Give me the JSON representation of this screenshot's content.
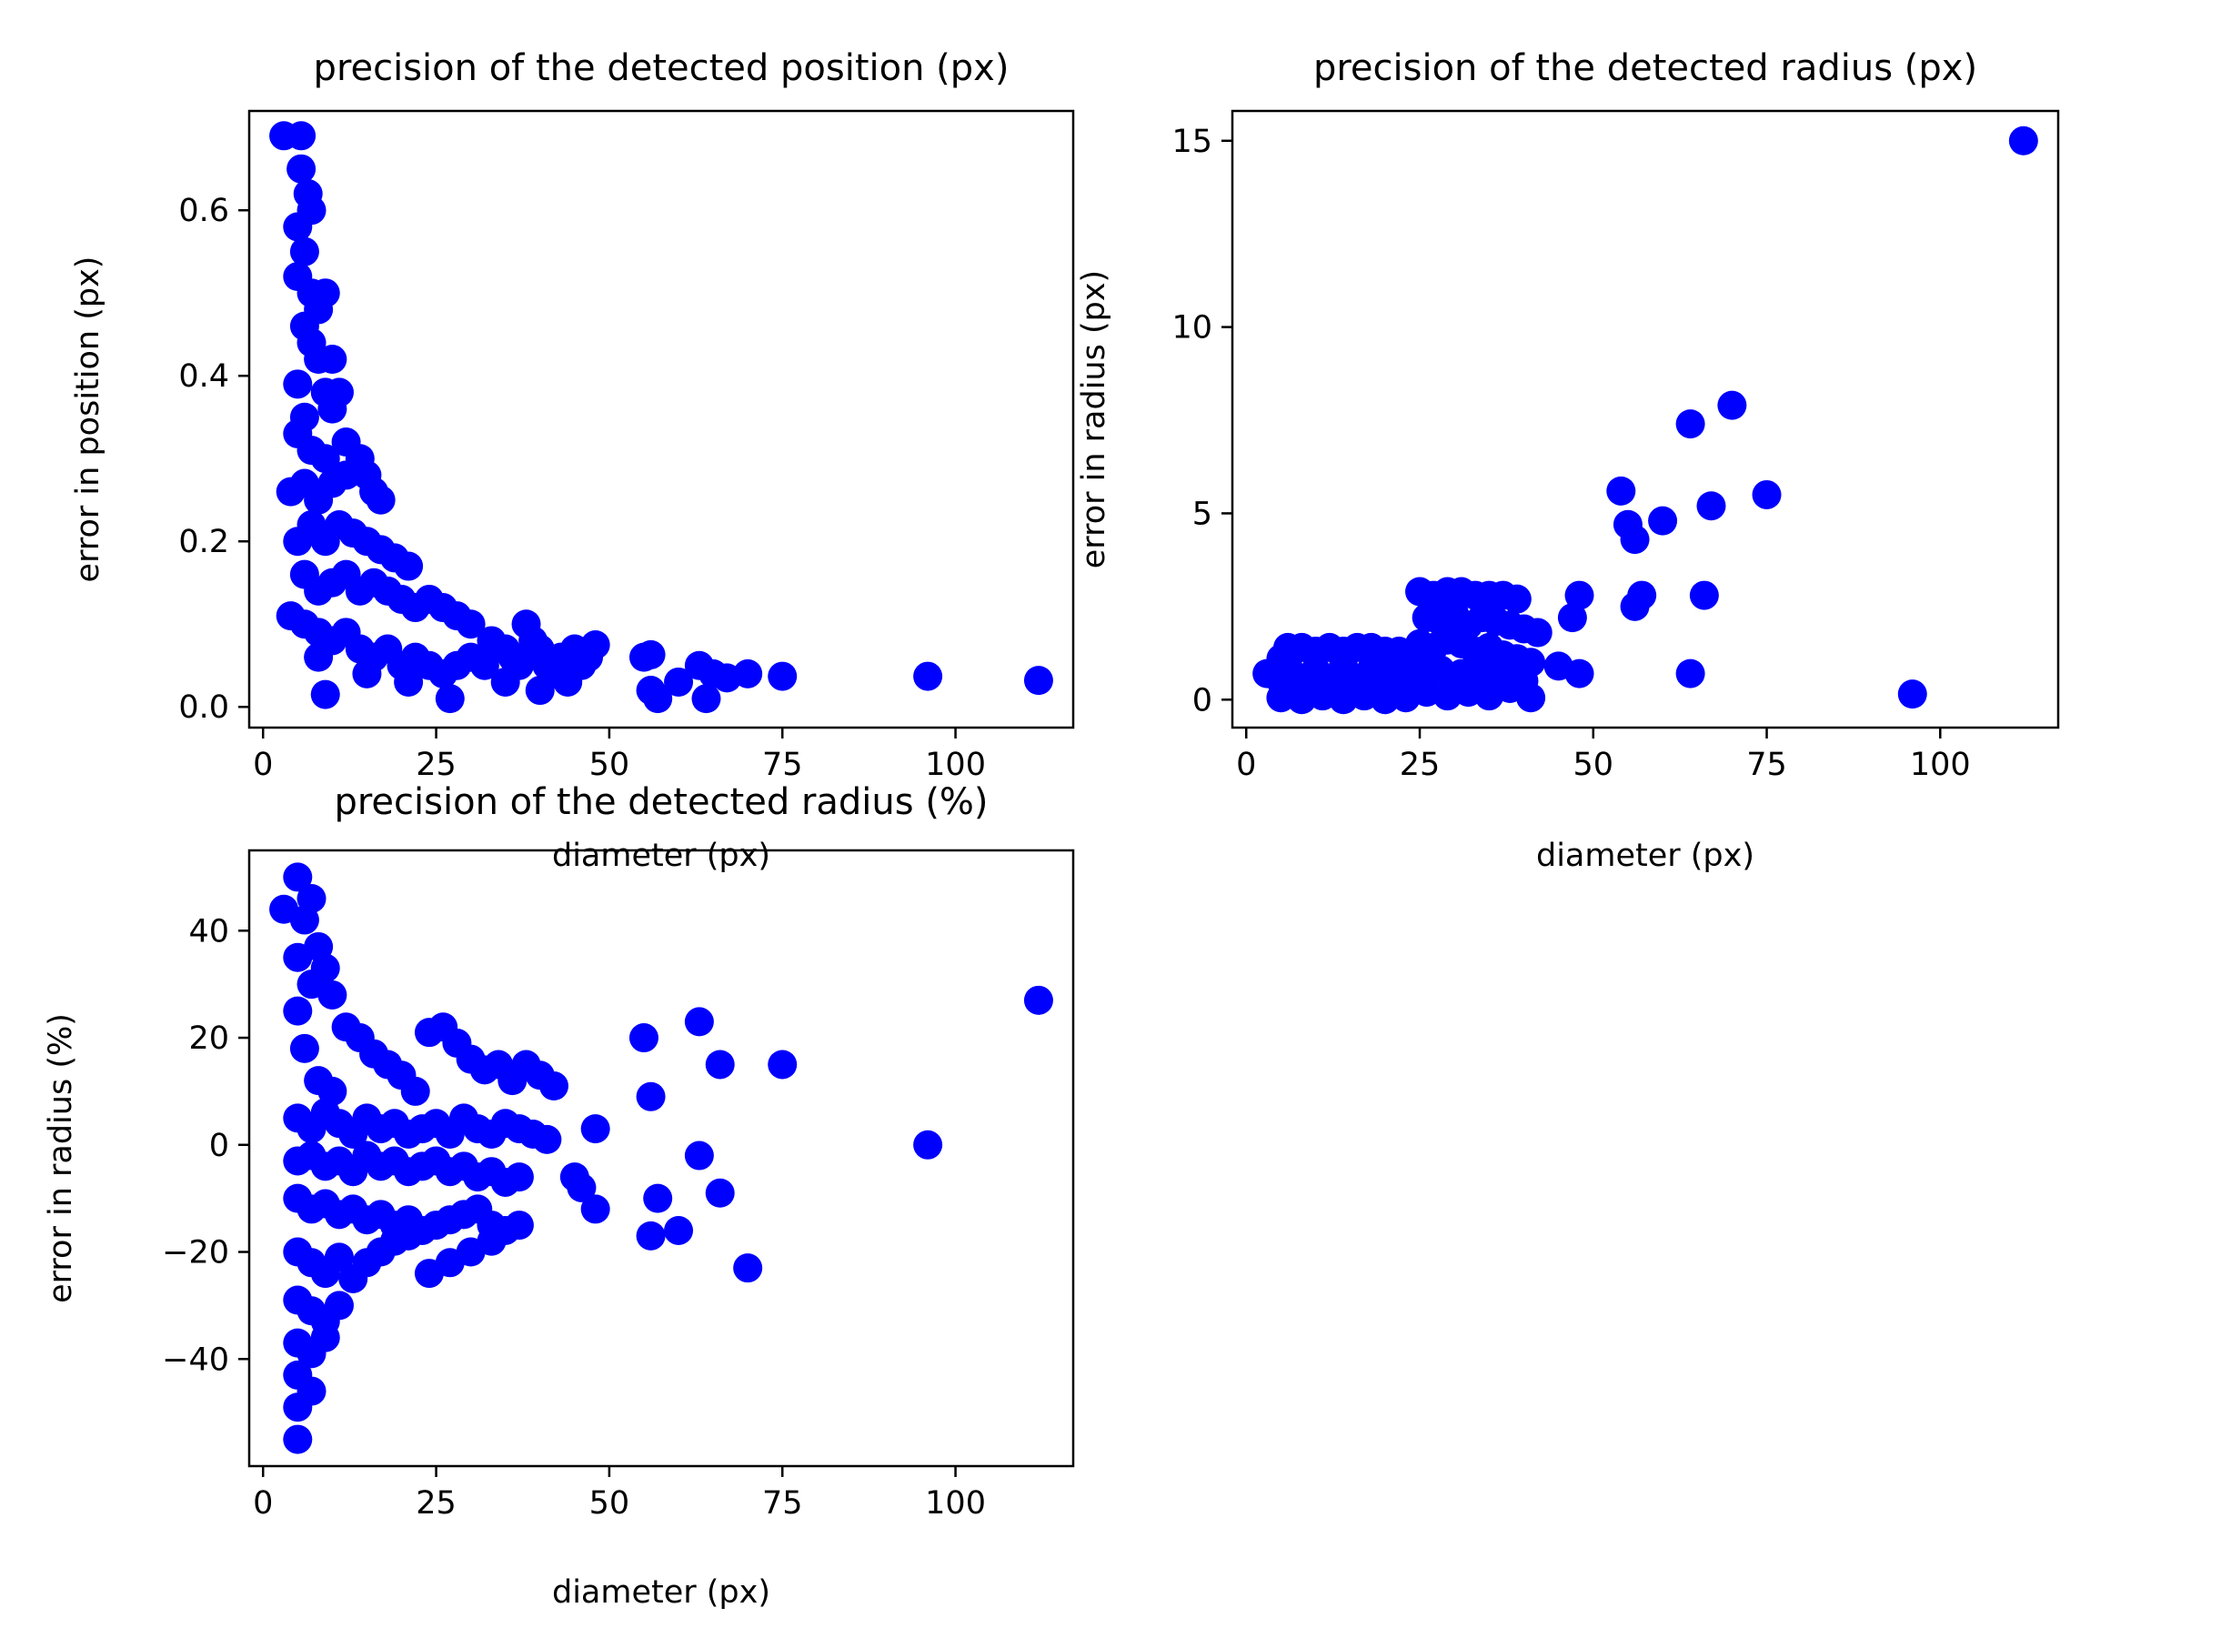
{
  "figure": {
    "background": "#ffffff",
    "marker_color": "#0000ff",
    "axis_color": "#000000"
  },
  "chart_data": [
    {
      "type": "scatter",
      "title": "precision of the detected position (px)",
      "xlabel": "diameter (px)",
      "ylabel": "error in position (px)",
      "xlim": [
        -2,
        117
      ],
      "ylim": [
        -0.025,
        0.72
      ],
      "xticks": [
        0,
        25,
        50,
        75,
        100
      ],
      "yticks": [
        0.0,
        0.2,
        0.4,
        0.6
      ],
      "xtick_labels": [
        "0",
        "25",
        "50",
        "75",
        "100"
      ],
      "ytick_labels": [
        "0.0",
        "0.2",
        "0.4",
        "0.6"
      ],
      "grid": false,
      "points": [
        [
          3,
          0.69
        ],
        [
          5.5,
          0.69
        ],
        [
          5.5,
          0.65
        ],
        [
          6.5,
          0.62
        ],
        [
          7,
          0.6
        ],
        [
          5,
          0.58
        ],
        [
          6,
          0.55
        ],
        [
          5,
          0.52
        ],
        [
          7,
          0.5
        ],
        [
          8,
          0.48
        ],
        [
          9,
          0.5
        ],
        [
          6,
          0.46
        ],
        [
          7,
          0.44
        ],
        [
          8,
          0.42
        ],
        [
          10,
          0.42
        ],
        [
          5,
          0.39
        ],
        [
          9,
          0.38
        ],
        [
          10,
          0.36
        ],
        [
          11,
          0.38
        ],
        [
          5,
          0.33
        ],
        [
          6,
          0.35
        ],
        [
          7,
          0.31
        ],
        [
          9,
          0.3
        ],
        [
          12,
          0.32
        ],
        [
          4,
          0.26
        ],
        [
          6,
          0.27
        ],
        [
          8,
          0.25
        ],
        [
          10,
          0.27
        ],
        [
          12,
          0.28
        ],
        [
          14,
          0.3
        ],
        [
          15,
          0.28
        ],
        [
          16,
          0.26
        ],
        [
          17,
          0.25
        ],
        [
          5,
          0.2
        ],
        [
          7,
          0.22
        ],
        [
          9,
          0.2
        ],
        [
          11,
          0.22
        ],
        [
          13,
          0.21
        ],
        [
          15,
          0.2
        ],
        [
          17,
          0.19
        ],
        [
          19,
          0.18
        ],
        [
          21,
          0.17
        ],
        [
          6,
          0.16
        ],
        [
          8,
          0.14
        ],
        [
          10,
          0.15
        ],
        [
          12,
          0.16
        ],
        [
          14,
          0.14
        ],
        [
          16,
          0.15
        ],
        [
          18,
          0.14
        ],
        [
          20,
          0.13
        ],
        [
          22,
          0.12
        ],
        [
          24,
          0.13
        ],
        [
          26,
          0.12
        ],
        [
          28,
          0.11
        ],
        [
          4,
          0.11
        ],
        [
          6,
          0.1
        ],
        [
          8,
          0.09
        ],
        [
          10,
          0.08
        ],
        [
          12,
          0.09
        ],
        [
          14,
          0.07
        ],
        [
          16,
          0.06
        ],
        [
          18,
          0.07
        ],
        [
          20,
          0.05
        ],
        [
          22,
          0.06
        ],
        [
          24,
          0.05
        ],
        [
          26,
          0.04
        ],
        [
          28,
          0.05
        ],
        [
          30,
          0.06
        ],
        [
          32,
          0.05
        ],
        [
          8,
          0.06
        ],
        [
          9,
          0.015
        ],
        [
          15,
          0.04
        ],
        [
          21,
          0.03
        ],
        [
          27,
          0.01
        ],
        [
          30,
          0.1
        ],
        [
          33,
          0.08
        ],
        [
          35,
          0.07
        ],
        [
          36,
          0.06
        ],
        [
          37,
          0.05
        ],
        [
          38,
          0.1
        ],
        [
          39,
          0.08
        ],
        [
          40,
          0.07
        ],
        [
          41,
          0.05
        ],
        [
          42,
          0.04
        ],
        [
          43,
          0.06
        ],
        [
          44,
          0.03
        ],
        [
          45,
          0.07
        ],
        [
          46,
          0.05
        ],
        [
          47,
          0.06
        ],
        [
          48,
          0.075
        ],
        [
          35,
          0.03
        ],
        [
          40,
          0.02
        ],
        [
          55,
          0.06
        ],
        [
          56,
          0.063
        ],
        [
          56,
          0.02
        ],
        [
          57,
          0.01
        ],
        [
          60,
          0.03
        ],
        [
          63,
          0.05
        ],
        [
          64,
          0.01
        ],
        [
          65,
          0.04
        ],
        [
          67,
          0.035
        ],
        [
          70,
          0.04
        ],
        [
          75,
          0.037
        ],
        [
          96,
          0.037
        ],
        [
          112,
          0.032
        ]
      ]
    },
    {
      "type": "scatter",
      "title": "precision of the detected radius (px)",
      "xlabel": "diameter (px)",
      "ylabel": "error in radius (px)",
      "xlim": [
        -2,
        117
      ],
      "ylim": [
        -0.75,
        15.8
      ],
      "xticks": [
        0,
        25,
        50,
        75,
        100
      ],
      "yticks": [
        0,
        5,
        10,
        15
      ],
      "xtick_labels": [
        "0",
        "25",
        "50",
        "75",
        "100"
      ],
      "ytick_labels": [
        "0",
        "5",
        "10",
        "15"
      ],
      "grid": false,
      "points": [
        [
          3,
          0.7
        ],
        [
          5,
          1.1
        ],
        [
          6,
          1.4
        ],
        [
          8,
          1.4
        ],
        [
          10,
          1.3
        ],
        [
          12,
          1.4
        ],
        [
          14,
          1.3
        ],
        [
          16,
          1.4
        ],
        [
          18,
          1.4
        ],
        [
          20,
          1.3
        ],
        [
          22,
          1.3
        ],
        [
          5,
          0.5
        ],
        [
          7,
          0.4
        ],
        [
          9,
          0.6
        ],
        [
          11,
          0.5
        ],
        [
          13,
          0.4
        ],
        [
          15,
          0.6
        ],
        [
          17,
          0.5
        ],
        [
          19,
          0.4
        ],
        [
          21,
          0.5
        ],
        [
          23,
          0.4
        ],
        [
          5,
          0.05
        ],
        [
          8,
          0
        ],
        [
          11,
          0.1
        ],
        [
          14,
          0
        ],
        [
          17,
          0.1
        ],
        [
          20,
          0
        ],
        [
          23,
          0.05
        ],
        [
          6,
          0.9
        ],
        [
          10,
          0.8
        ],
        [
          14,
          0.9
        ],
        [
          18,
          0.8
        ],
        [
          22,
          0.9
        ],
        [
          25,
          2.9
        ],
        [
          27,
          2.8
        ],
        [
          29,
          2.9
        ],
        [
          31,
          2.9
        ],
        [
          33,
          2.8
        ],
        [
          35,
          2.8
        ],
        [
          37,
          2.8
        ],
        [
          39,
          2.7
        ],
        [
          26,
          2.2
        ],
        [
          28,
          2.1
        ],
        [
          30,
          2.3
        ],
        [
          32,
          2.0
        ],
        [
          34,
          2.2
        ],
        [
          36,
          2.1
        ],
        [
          38,
          2.0
        ],
        [
          40,
          1.9
        ],
        [
          42,
          1.8
        ],
        [
          25,
          1.5
        ],
        [
          27,
          1.4
        ],
        [
          29,
          1.6
        ],
        [
          31,
          1.5
        ],
        [
          33,
          1.3
        ],
        [
          35,
          1.4
        ],
        [
          37,
          1.2
        ],
        [
          39,
          1.1
        ],
        [
          41,
          1.0
        ],
        [
          25,
          0.9
        ],
        [
          28,
          0.8
        ],
        [
          31,
          0.7
        ],
        [
          34,
          0.8
        ],
        [
          37,
          0.6
        ],
        [
          40,
          0.5
        ],
        [
          26,
          0.2
        ],
        [
          29,
          0.1
        ],
        [
          32,
          0.2
        ],
        [
          35,
          0.1
        ],
        [
          38,
          0.3
        ],
        [
          41,
          0.05
        ],
        [
          45,
          0.9
        ],
        [
          47,
          2.2
        ],
        [
          48,
          2.8
        ],
        [
          48,
          0.7
        ],
        [
          54,
          5.6
        ],
        [
          55,
          4.7
        ],
        [
          56,
          4.3
        ],
        [
          56,
          2.5
        ],
        [
          57,
          2.8
        ],
        [
          60,
          4.8
        ],
        [
          64,
          7.4
        ],
        [
          64,
          0.7
        ],
        [
          66,
          2.8
        ],
        [
          67,
          5.2
        ],
        [
          70,
          7.9
        ],
        [
          75,
          5.5
        ],
        [
          96,
          0.15
        ],
        [
          112,
          15.0
        ]
      ]
    },
    {
      "type": "scatter",
      "title": "precision of the detected radius (%)",
      "xlabel": "diameter (px)",
      "ylabel": "error in radius (%)",
      "xlim": [
        -2,
        117
      ],
      "ylim": [
        -60,
        55
      ],
      "xticks": [
        0,
        25,
        50,
        75,
        100
      ],
      "yticks": [
        -40,
        -20,
        0,
        20,
        40
      ],
      "xtick_labels": [
        "0",
        "25",
        "50",
        "75",
        "100"
      ],
      "ytick_labels": [
        "−40",
        "−20",
        "0",
        "20",
        "40"
      ],
      "grid": false,
      "points": [
        [
          3,
          44
        ],
        [
          5,
          50
        ],
        [
          7,
          46
        ],
        [
          6,
          42
        ],
        [
          8,
          37
        ],
        [
          5,
          35
        ],
        [
          9,
          33
        ],
        [
          7,
          30
        ],
        [
          10,
          28
        ],
        [
          5,
          25
        ],
        [
          12,
          22
        ],
        [
          14,
          20
        ],
        [
          6,
          18
        ],
        [
          16,
          17
        ],
        [
          18,
          15
        ],
        [
          20,
          13
        ],
        [
          8,
          12
        ],
        [
          10,
          10
        ],
        [
          22,
          10
        ],
        [
          24,
          21
        ],
        [
          26,
          22
        ],
        [
          28,
          19
        ],
        [
          30,
          16
        ],
        [
          32,
          14
        ],
        [
          34,
          15
        ],
        [
          36,
          12
        ],
        [
          38,
          15
        ],
        [
          40,
          13
        ],
        [
          42,
          11
        ],
        [
          5,
          5
        ],
        [
          7,
          3
        ],
        [
          9,
          6
        ],
        [
          11,
          4
        ],
        [
          13,
          2
        ],
        [
          15,
          5
        ],
        [
          17,
          3
        ],
        [
          19,
          4
        ],
        [
          21,
          2
        ],
        [
          23,
          3
        ],
        [
          25,
          4
        ],
        [
          27,
          2
        ],
        [
          29,
          5
        ],
        [
          31,
          3
        ],
        [
          33,
          2
        ],
        [
          35,
          4
        ],
        [
          37,
          3
        ],
        [
          39,
          2
        ],
        [
          41,
          1
        ],
        [
          5,
          -3
        ],
        [
          7,
          -2
        ],
        [
          9,
          -4
        ],
        [
          11,
          -3
        ],
        [
          13,
          -5
        ],
        [
          15,
          -2
        ],
        [
          17,
          -4
        ],
        [
          19,
          -3
        ],
        [
          21,
          -5
        ],
        [
          23,
          -4
        ],
        [
          25,
          -3
        ],
        [
          27,
          -5
        ],
        [
          29,
          -4
        ],
        [
          31,
          -6
        ],
        [
          33,
          -5
        ],
        [
          35,
          -7
        ],
        [
          37,
          -6
        ],
        [
          5,
          -10
        ],
        [
          7,
          -12
        ],
        [
          9,
          -11
        ],
        [
          11,
          -13
        ],
        [
          13,
          -12
        ],
        [
          15,
          -14
        ],
        [
          17,
          -13
        ],
        [
          19,
          -15
        ],
        [
          21,
          -14
        ],
        [
          23,
          -16
        ],
        [
          25,
          -15
        ],
        [
          27,
          -14
        ],
        [
          29,
          -13
        ],
        [
          31,
          -12
        ],
        [
          33,
          -15
        ],
        [
          35,
          -16
        ],
        [
          37,
          -15
        ],
        [
          5,
          -20
        ],
        [
          7,
          -22
        ],
        [
          9,
          -24
        ],
        [
          11,
          -21
        ],
        [
          13,
          -25
        ],
        [
          15,
          -22
        ],
        [
          17,
          -20
        ],
        [
          19,
          -18
        ],
        [
          21,
          -17
        ],
        [
          24,
          -24
        ],
        [
          27,
          -22
        ],
        [
          30,
          -20
        ],
        [
          33,
          -18
        ],
        [
          5,
          -29
        ],
        [
          7,
          -31
        ],
        [
          9,
          -33
        ],
        [
          11,
          -30
        ],
        [
          5,
          -37
        ],
        [
          7,
          -39
        ],
        [
          9,
          -36
        ],
        [
          5,
          -43
        ],
        [
          7,
          -46
        ],
        [
          5,
          -49
        ],
        [
          5,
          -55
        ],
        [
          45,
          -6
        ],
        [
          46,
          -8
        ],
        [
          48,
          3
        ],
        [
          48,
          -12
        ],
        [
          55,
          20
        ],
        [
          56,
          9
        ],
        [
          56,
          -17
        ],
        [
          57,
          -10
        ],
        [
          60,
          -16
        ],
        [
          63,
          23
        ],
        [
          63,
          -2
        ],
        [
          66,
          15
        ],
        [
          66,
          -9
        ],
        [
          70,
          -23
        ],
        [
          75,
          15
        ],
        [
          96,
          0
        ],
        [
          112,
          27
        ]
      ]
    }
  ]
}
